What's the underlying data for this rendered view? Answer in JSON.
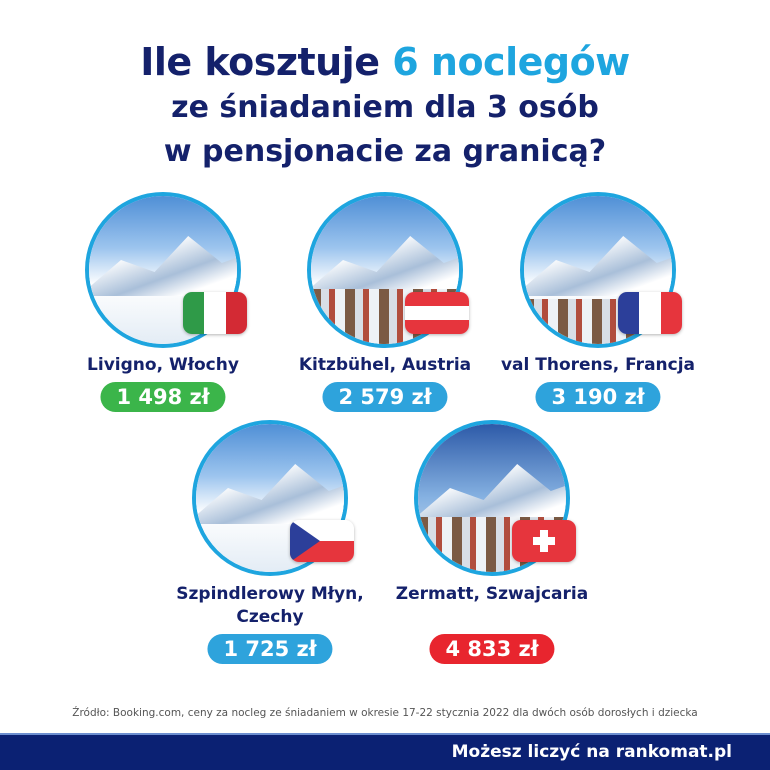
{
  "title": {
    "line1_pre": "Ile kosztuje ",
    "line1_accent": "6 noclegów",
    "line2": "ze śniadaniem dla 3 osób",
    "line3": "w pensjonacie za granicą?"
  },
  "colors": {
    "navy": "#14216b",
    "accent": "#1ea5df",
    "green": "#3bb54a",
    "blue": "#2ea3dc",
    "red": "#e8252e",
    "footer": "#0b2173"
  },
  "destinations": [
    {
      "name": "Livigno, Włochy",
      "price": "1 498 zł",
      "flag": "italy-flag",
      "pill_color": "#3bb54a"
    },
    {
      "name": "Kitzbühel, Austria",
      "price": "2 579 zł",
      "flag": "austria-flag",
      "pill_color": "#2ea3dc"
    },
    {
      "name": "val Thorens, Francja",
      "price": "3 190 zł",
      "flag": "france-flag",
      "pill_color": "#2ea3dc"
    },
    {
      "name": "Szpindlerowy Młyn, Czechy",
      "price": "1 725 zł",
      "flag": "czech-flag",
      "pill_color": "#2ea3dc"
    },
    {
      "name": "Zermatt, Szwajcaria",
      "price": "4 833 zł",
      "flag": "switzerland-flag",
      "pill_color": "#e8252e"
    }
  ],
  "source": "Źródło: Booking.com, ceny za nocleg ze śniadaniem w okresie 17-22 stycznia 2022 dla dwóch osób dorosłych i dziecka",
  "footer": {
    "slogan": "Możesz liczyć na rankomat.pl"
  }
}
